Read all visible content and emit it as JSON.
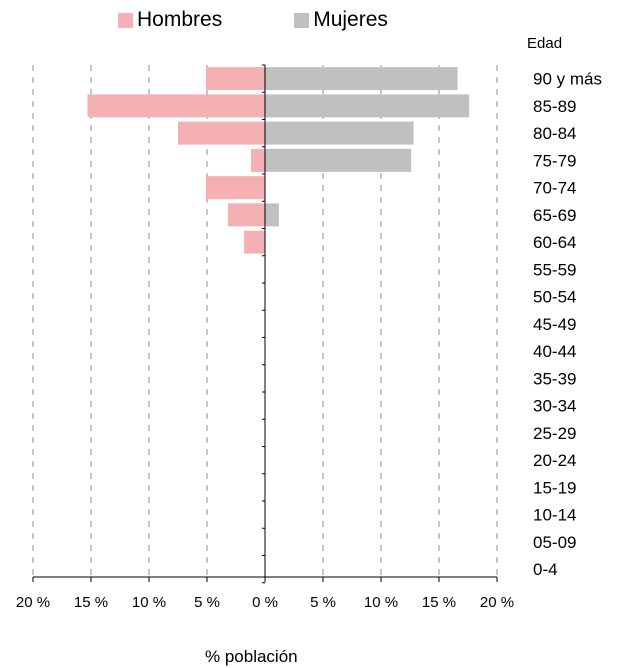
{
  "chart_data": {
    "type": "bar",
    "orientation": "horizontal",
    "layout": "population-pyramid",
    "xlabel": "% población",
    "age_axis_title": "Edad",
    "categories": [
      "90 y más",
      "85-89",
      "80-84",
      "75-79",
      "70-74",
      "65-69",
      "60-64",
      "55-59",
      "50-54",
      "45-49",
      "40-44",
      "35-39",
      "30-34",
      "25-29",
      "20-24",
      "15-19",
      "10-14",
      "05-09",
      "0-4"
    ],
    "series": [
      {
        "name": "Hombres",
        "side": "left",
        "color": "#f4b0b3",
        "values": [
          5.1,
          15.3,
          7.5,
          1.2,
          5.1,
          3.2,
          1.8,
          0,
          0,
          0,
          0,
          0,
          0,
          0,
          0,
          0,
          0,
          0,
          0
        ]
      },
      {
        "name": "Mujeres",
        "side": "right",
        "color": "#c0c0c0",
        "values": [
          16.6,
          17.6,
          12.8,
          12.6,
          0,
          1.2,
          0,
          0,
          0,
          0,
          0,
          0,
          0,
          0,
          0,
          0,
          0,
          0,
          0
        ]
      }
    ],
    "x_ticks": [
      "20 %",
      "15 %",
      "10 %",
      "5 %",
      "0 %",
      "5 %",
      "10 %",
      "15 %",
      "20 %"
    ],
    "xlim": [
      -20,
      20
    ],
    "grid": "vertical dashed",
    "legend": "top"
  }
}
